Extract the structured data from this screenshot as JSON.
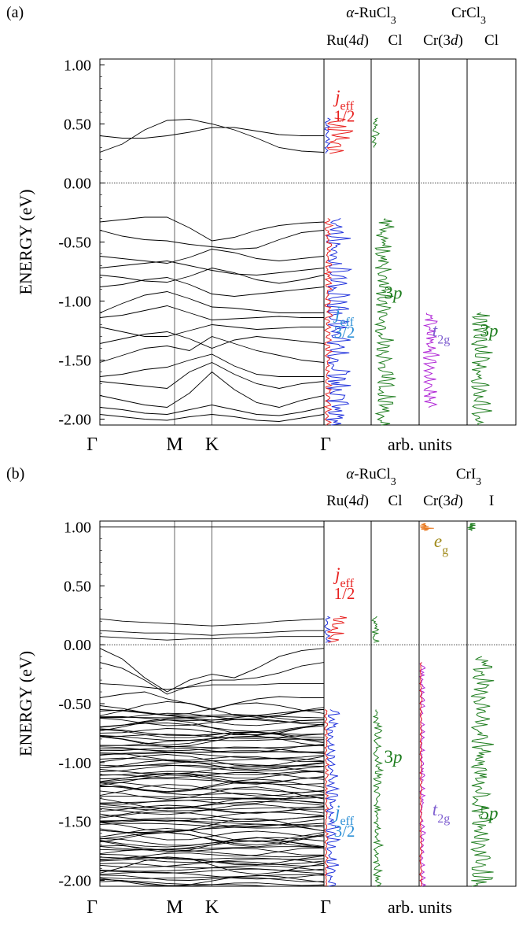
{
  "chart_data": [
    {
      "type": "line",
      "panel_label": "(a)",
      "ylabel": "ENERGY (eV)",
      "ylim": [
        -2.05,
        1.05
      ],
      "y_ticks": [
        "1.00",
        "0.50",
        "0.00",
        "-0.50",
        "-1.00",
        "-1.50",
        "-2.00"
      ],
      "k_labels": [
        "Γ",
        "M",
        "K",
        "Γ"
      ],
      "k_positions": [
        0,
        1,
        1.5,
        3
      ],
      "dos_xlabel": "arb. units",
      "compounds": [
        {
          "prefix": "α",
          "name": "-RuCl",
          "sub": "3"
        },
        {
          "prefix": "",
          "name": "CrCl",
          "sub": "3"
        }
      ],
      "dos_columns": [
        {
          "label": "Ru(4",
          "italic": "d",
          "suffix": ")"
        },
        {
          "label": "Cl",
          "italic": "",
          "suffix": ""
        },
        {
          "label": "Cr(3",
          "italic": "d",
          "suffix": ")"
        },
        {
          "label": "Cl",
          "italic": "",
          "suffix": ""
        }
      ],
      "dos_annotations": [
        {
          "col": 0,
          "italic": "j",
          "sub": "eff",
          "line2": "1/2",
          "y": 0.68,
          "color": "#e8211f"
        },
        {
          "col": 0,
          "italic": "j",
          "sub": "eff",
          "line2": "3/2",
          "y": -1.15,
          "color": "#2b8fd6"
        },
        {
          "col": 1,
          "italic": "",
          "pre": "3",
          "text": "p",
          "y": -0.98,
          "color": "#1e7d1e"
        },
        {
          "col": 2,
          "italic": "t",
          "sub": "2g",
          "y": -1.3,
          "color": "#7f5fd0"
        },
        {
          "col": 3,
          "italic": "",
          "pre": "3",
          "text": "p",
          "y": -1.3,
          "color": "#1e7d1e"
        }
      ],
      "bands": {
        "conduction": [
          [
            0.4,
            0.38,
            0.38,
            0.4,
            0.43,
            0.47,
            0.47,
            0.44,
            0.41,
            0.4,
            0.4
          ],
          [
            0.26,
            0.33,
            0.45,
            0.53,
            0.54,
            0.5,
            0.45,
            0.38,
            0.3,
            0.27,
            0.26
          ]
        ],
        "valence": [
          [
            -0.33,
            -0.31,
            -0.29,
            -0.29,
            -0.38,
            -0.49,
            -0.46,
            -0.4,
            -0.36,
            -0.34,
            -0.33
          ],
          [
            -0.4,
            -0.45,
            -0.48,
            -0.49,
            -0.52,
            -0.54,
            -0.56,
            -0.55,
            -0.48,
            -0.42,
            -0.4
          ],
          [
            -0.62,
            -0.64,
            -0.66,
            -0.68,
            -0.63,
            -0.56,
            -0.59,
            -0.64,
            -0.66,
            -0.64,
            -0.62
          ],
          [
            -0.72,
            -0.7,
            -0.68,
            -0.66,
            -0.7,
            -0.74,
            -0.77,
            -0.78,
            -0.76,
            -0.74,
            -0.72
          ],
          [
            -0.78,
            -0.8,
            -0.83,
            -0.84,
            -0.79,
            -0.72,
            -0.76,
            -0.82,
            -0.85,
            -0.82,
            -0.78
          ],
          [
            -0.88,
            -0.86,
            -0.82,
            -0.8,
            -0.86,
            -0.94,
            -0.96,
            -0.94,
            -0.92,
            -0.9,
            -0.88
          ],
          [
            -1.1,
            -1.02,
            -0.95,
            -0.92,
            -0.98,
            -1.05,
            -1.06,
            -1.08,
            -1.1,
            -1.1,
            -1.1
          ],
          [
            -1.14,
            -1.12,
            -1.08,
            -1.04,
            -1.1,
            -1.16,
            -1.15,
            -1.14,
            -1.13,
            -1.14,
            -1.14
          ],
          [
            -1.22,
            -1.26,
            -1.3,
            -1.3,
            -1.25,
            -1.2,
            -1.22,
            -1.24,
            -1.23,
            -1.22,
            -1.22
          ],
          [
            -1.36,
            -1.32,
            -1.28,
            -1.26,
            -1.32,
            -1.4,
            -1.33,
            -1.3,
            -1.32,
            -1.34,
            -1.36
          ],
          [
            -1.52,
            -1.46,
            -1.4,
            -1.38,
            -1.42,
            -1.3,
            -1.36,
            -1.42,
            -1.46,
            -1.5,
            -1.52
          ],
          [
            -1.64,
            -1.62,
            -1.58,
            -1.56,
            -1.5,
            -1.45,
            -1.55,
            -1.62,
            -1.64,
            -1.64,
            -1.64
          ],
          [
            -1.68,
            -1.7,
            -1.72,
            -1.74,
            -1.6,
            -1.52,
            -1.62,
            -1.7,
            -1.74,
            -1.7,
            -1.68
          ],
          [
            -1.8,
            -1.84,
            -1.88,
            -1.9,
            -1.78,
            -1.6,
            -1.75,
            -1.86,
            -1.9,
            -1.84,
            -1.8
          ],
          [
            -1.9,
            -1.92,
            -1.95,
            -1.96,
            -1.92,
            -1.88,
            -1.92,
            -1.96,
            -1.97,
            -1.94,
            -1.9
          ],
          [
            -1.96,
            -1.98,
            -2.0,
            -2.01,
            -1.98,
            -1.96,
            -1.98,
            -2.01,
            -2.02,
            -1.99,
            -1.96
          ]
        ]
      }
    },
    {
      "type": "line",
      "panel_label": "(b)",
      "ylabel": "ENERGY (eV)",
      "ylim": [
        -2.05,
        1.05
      ],
      "y_ticks": [
        "1.00",
        "0.50",
        "0.00",
        "-0.50",
        "-1.00",
        "-1.50",
        "-2.00"
      ],
      "k_labels": [
        "Γ",
        "M",
        "K",
        "Γ"
      ],
      "k_positions": [
        0,
        1,
        1.5,
        3
      ],
      "dos_xlabel": "arb. units",
      "compounds": [
        {
          "prefix": "α",
          "name": "-RuCl",
          "sub": "3"
        },
        {
          "prefix": "",
          "name": "CrI",
          "sub": "3"
        }
      ],
      "dos_columns": [
        {
          "label": "Ru(4",
          "italic": "d",
          "suffix": ")"
        },
        {
          "label": "Cl",
          "italic": "",
          "suffix": ""
        },
        {
          "label": "Cr(3",
          "italic": "d",
          "suffix": ")"
        },
        {
          "label": "I",
          "italic": "",
          "suffix": ""
        }
      ],
      "dos_annotations": [
        {
          "col": 2,
          "italic": "e",
          "sub": "g",
          "y": 0.83,
          "color": "#a08a1a"
        },
        {
          "col": 0,
          "italic": "j",
          "sub": "eff",
          "line2": "1/2",
          "y": 0.55,
          "color": "#e8211f"
        },
        {
          "col": 0,
          "italic": "j",
          "sub": "eff",
          "line2": "3/2",
          "y": -1.47,
          "color": "#2b8fd6"
        },
        {
          "col": 1,
          "italic": "",
          "pre": "3",
          "text": "p",
          "y": -1.0,
          "color": "#1e7d1e"
        },
        {
          "col": 2,
          "italic": "t",
          "sub": "2g",
          "y": -1.45,
          "color": "#7f5fd0"
        },
        {
          "col": 3,
          "italic": "",
          "pre": "5",
          "text": "p",
          "y": -1.48,
          "color": "#1e7d1e"
        }
      ],
      "bands": {
        "conduction": [
          [
            0.22,
            0.2,
            0.19,
            0.18,
            0.17,
            0.16,
            0.17,
            0.18,
            0.2,
            0.21,
            0.22
          ],
          [
            0.12,
            0.11,
            0.1,
            0.1,
            0.09,
            0.08,
            0.09,
            0.1,
            0.11,
            0.12,
            0.12
          ],
          [
            0.07,
            0.06,
            0.05,
            0.04,
            0.05,
            0.05,
            0.06,
            0.06,
            0.07,
            0.07,
            0.07
          ],
          [
            1.0,
            1.0,
            1.0,
            1.0,
            1.0,
            1.0,
            1.0,
            1.0,
            1.0,
            1.0,
            1.0
          ]
        ],
        "valence": [
          [
            -0.03,
            -0.12,
            -0.28,
            -0.4,
            -0.3,
            -0.25,
            -0.28,
            -0.2,
            -0.1,
            -0.05,
            -0.03
          ],
          [
            -0.15,
            -0.2,
            -0.3,
            -0.42,
            -0.35,
            -0.3,
            -0.3,
            -0.28,
            -0.24,
            -0.18,
            -0.15
          ],
          [
            -0.33,
            -0.34,
            -0.36,
            -0.38,
            -0.36,
            -0.34,
            -0.34,
            -0.34,
            -0.33,
            -0.33,
            -0.33
          ],
          [
            -0.45,
            -0.42,
            -0.4,
            -0.46,
            -0.5,
            -0.55,
            -0.5,
            -0.46,
            -0.44,
            -0.45,
            -0.45
          ],
          [
            -0.55,
            -0.56,
            -0.58,
            -0.6,
            -0.62,
            -0.64,
            -0.62,
            -0.6,
            -0.58,
            -0.56,
            -0.55
          ]
        ],
        "dense_top": -0.55,
        "dense_bottom": -2.05,
        "dense_count": 90
      }
    }
  ]
}
